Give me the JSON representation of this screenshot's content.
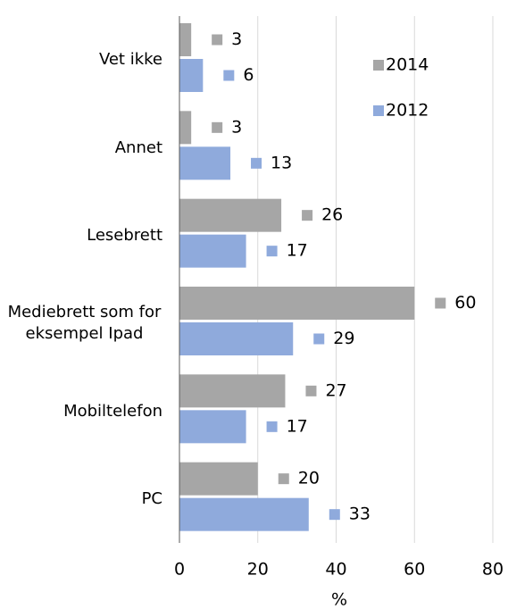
{
  "chart_data": {
    "type": "bar",
    "orientation": "horizontal",
    "categories": [
      "Vet ikke",
      "Annet",
      "Lesebrett",
      "Mediebrett som for eksempel Ipad",
      "Mobiltelefon",
      "PC"
    ],
    "series": [
      {
        "name": "2014",
        "color": "#a6a6a6",
        "values": [
          3,
          3,
          26,
          60,
          27,
          20
        ]
      },
      {
        "name": "2012",
        "color": "#8faadc",
        "values": [
          6,
          13,
          17,
          29,
          17,
          33
        ]
      }
    ],
    "xlabel": "%",
    "xlim": [
      0,
      80
    ],
    "xticks": [
      0,
      20,
      40,
      60,
      80
    ],
    "grid": true,
    "legend": "top-right"
  }
}
